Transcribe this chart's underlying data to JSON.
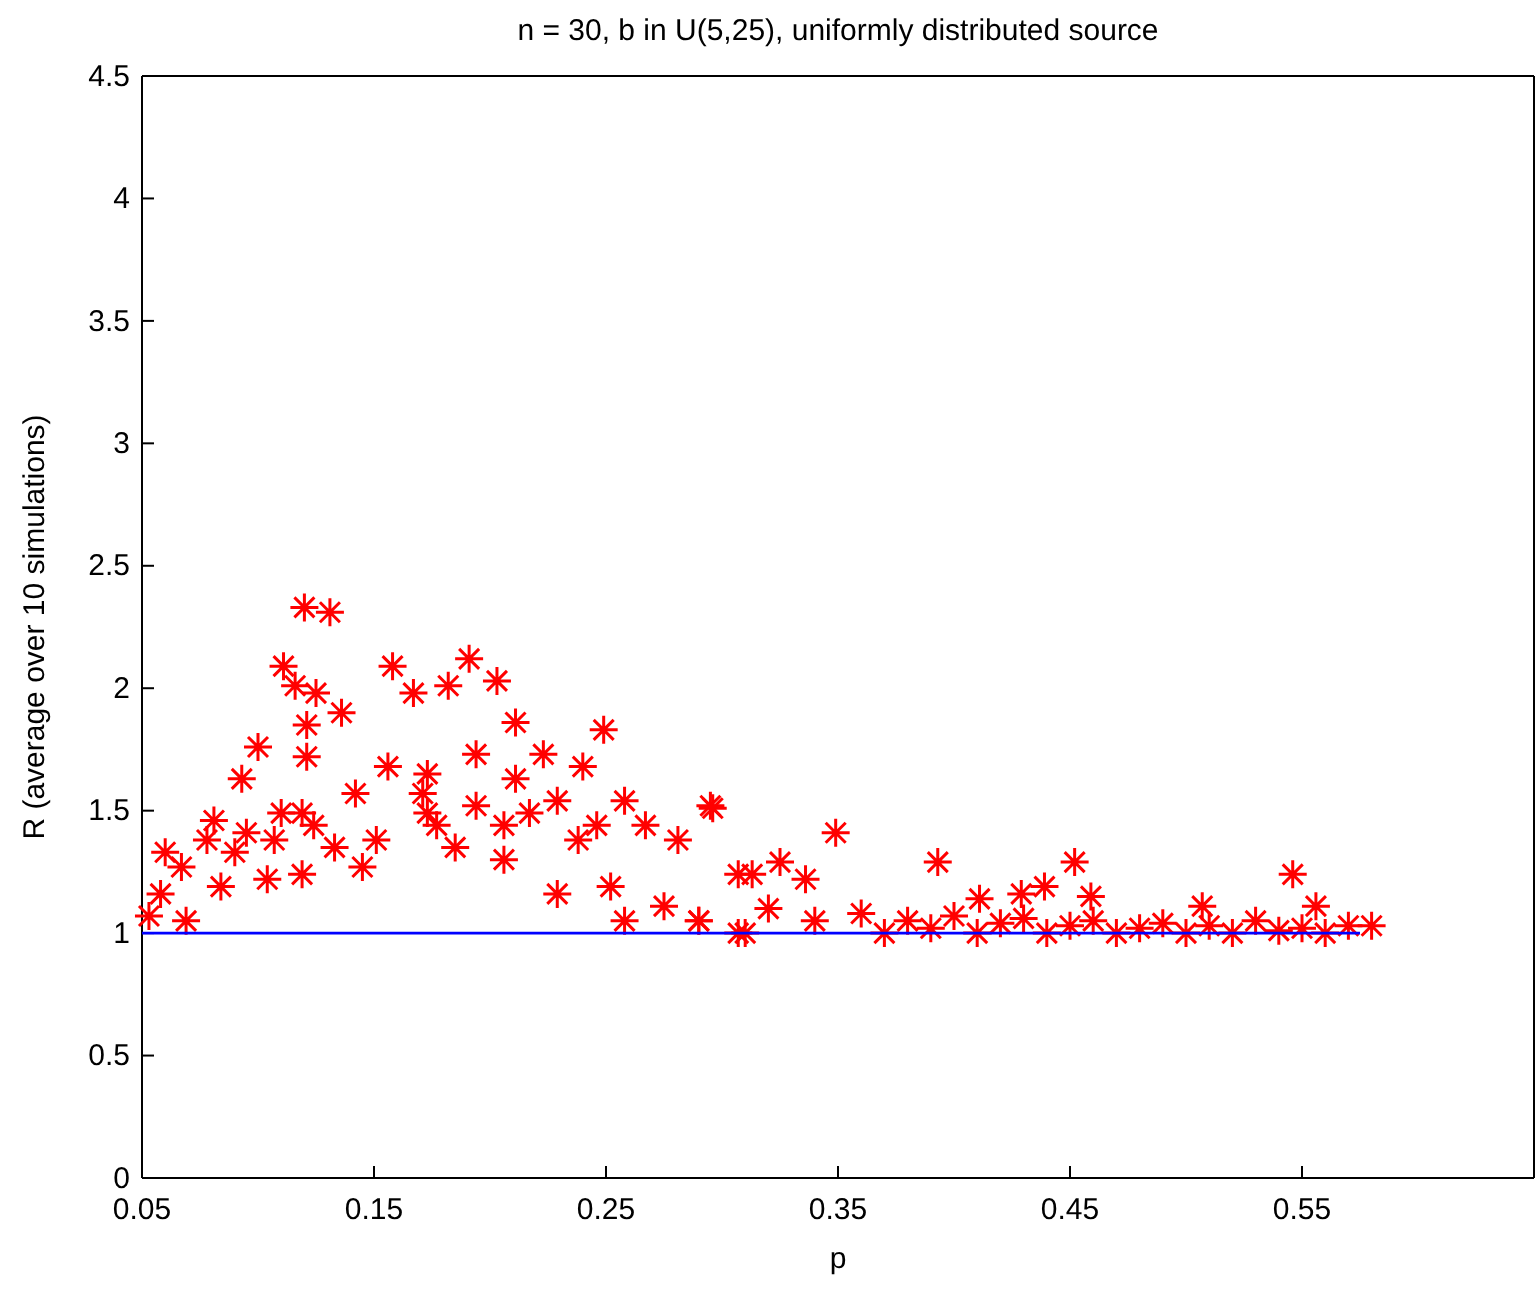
{
  "chart_data": {
    "type": "scatter",
    "title": "n = 30, b in U(5,25), uniformly distributed source",
    "xlabel": "p",
    "ylabel": "R (average over 10 simulations)",
    "xlim": [
      0.05,
      0.65
    ],
    "xticks": [
      0.05,
      0.15,
      0.25,
      0.35,
      0.45,
      0.55
    ],
    "ylim": [
      0,
      4.5
    ],
    "yticks": [
      0,
      0.5,
      1,
      1.5,
      2,
      2.5,
      3,
      3.5,
      4,
      4.5
    ],
    "grid": false,
    "series": [
      {
        "color": "#ff0000",
        "marker": "cross",
        "x": [
          0.12,
          0.131,
          0.111,
          0.158,
          0.191,
          0.203,
          0.167,
          0.182,
          0.125,
          0.116,
          0.136,
          0.121,
          0.211,
          0.249,
          0.1,
          0.093,
          0.121,
          0.156,
          0.173,
          0.194,
          0.223,
          0.24,
          0.142,
          0.171,
          0.194,
          0.211,
          0.229,
          0.11,
          0.081,
          0.119,
          0.295,
          0.258,
          0.267,
          0.151,
          0.173,
          0.206,
          0.217,
          0.246,
          0.281,
          0.185,
          0.145,
          0.133,
          0.104,
          0.119,
          0.206,
          0.229,
          0.252,
          0.258,
          0.275,
          0.29,
          0.307,
          0.307,
          0.067,
          0.058,
          0.053,
          0.069,
          0.078,
          0.09,
          0.084,
          0.095,
          0.06,
          0.107,
          0.124,
          0.238,
          0.177,
          0.296,
          0.349,
          0.393,
          0.452,
          0.546,
          0.439,
          0.325,
          0.459,
          0.411,
          0.429,
          0.507,
          0.556,
          0.313,
          0.336,
          0.29,
          0.31,
          0.58,
          0.32,
          0.34,
          0.36,
          0.37,
          0.38,
          0.39,
          0.4,
          0.41,
          0.42,
          0.43,
          0.44,
          0.45,
          0.46,
          0.47,
          0.48,
          0.49,
          0.5,
          0.51,
          0.52,
          0.53,
          0.54,
          0.55,
          0.56,
          0.57
        ],
        "values": [
          2.33,
          2.31,
          2.09,
          2.09,
          2.12,
          2.03,
          1.98,
          2.01,
          1.98,
          2.01,
          1.9,
          1.85,
          1.86,
          1.83,
          1.76,
          1.63,
          1.72,
          1.68,
          1.65,
          1.73,
          1.73,
          1.68,
          1.57,
          1.57,
          1.52,
          1.63,
          1.54,
          1.49,
          1.46,
          1.49,
          1.52,
          1.54,
          1.44,
          1.38,
          1.49,
          1.44,
          1.49,
          1.44,
          1.38,
          1.35,
          1.27,
          1.35,
          1.22,
          1.24,
          1.3,
          1.16,
          1.19,
          1.05,
          1.11,
          1.05,
          1.24,
          1,
          1.27,
          1.16,
          1.07,
          1.05,
          1.38,
          1.33,
          1.19,
          1.41,
          1.33,
          1.38,
          1.44,
          1.38,
          1.44,
          1.51,
          1.41,
          1.29,
          1.29,
          1.24,
          1.19,
          1.29,
          1.15,
          1.14,
          1.16,
          1.11,
          1.11,
          1.24,
          1.22,
          1.05,
          1,
          1.03,
          1.1,
          1.05,
          1.08,
          1,
          1.05,
          1.02,
          1.07,
          1,
          1.04,
          1.06,
          1,
          1.03,
          1.05,
          1,
          1.02,
          1.04,
          1,
          1.03,
          1,
          1.05,
          1.01,
          1.02,
          1,
          1.03
        ]
      },
      {
        "type": "line",
        "color": "#0000ff",
        "marker": "none",
        "x": [
          0.05,
          0.575
        ],
        "values": [
          1,
          1
        ]
      }
    ]
  }
}
